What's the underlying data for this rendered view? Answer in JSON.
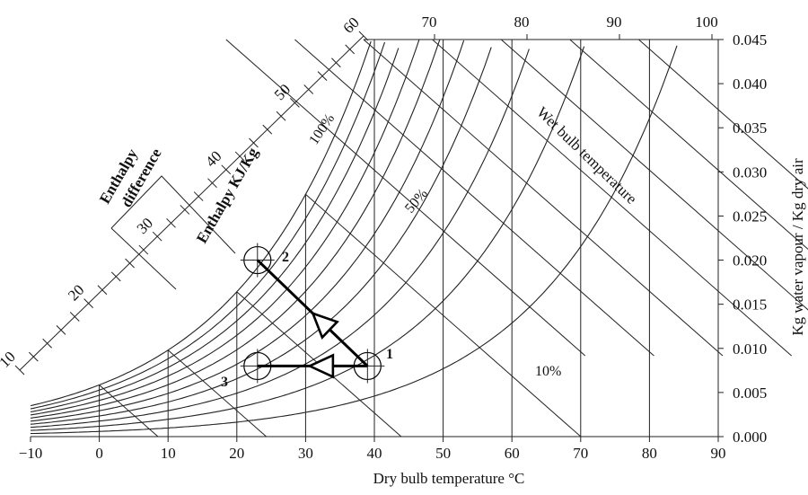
{
  "chart_data": {
    "type": "line",
    "x_axis": {
      "label": "Dry bulb temperature °C",
      "ticks_bottom": [
        "−10",
        "0",
        "10",
        "20",
        "30",
        "40",
        "50",
        "60",
        "70",
        "80",
        "90"
      ],
      "ticks_top": [
        "70",
        "80",
        "90",
        "100"
      ]
    },
    "y_axis": {
      "label": "Kg water vapour / Kg dry air",
      "side": "right",
      "ticks": [
        "0.000",
        "0.005",
        "0.010",
        "0.015",
        "0.020",
        "0.025",
        "0.030",
        "0.035",
        "0.040",
        "0.045"
      ],
      "range": [
        0,
        0.045
      ]
    },
    "enthalpy_scale": {
      "label": "Enthalpy KJ/Kg",
      "ticks": [
        "10",
        "20",
        "30",
        "40",
        "50",
        "60"
      ]
    },
    "enthalpy_difference_label": [
      "Enthalpy",
      "difference"
    ],
    "wet_bulb_label": "Wet bulb temperature",
    "rh_labels": [
      "100%",
      "50%",
      "10%"
    ],
    "relative_humidity_curves": [
      100,
      90,
      80,
      70,
      60,
      50,
      40,
      30,
      20,
      10
    ],
    "wet_bulb_lines": [
      0,
      10,
      20,
      30,
      40,
      50,
      60,
      70,
      80,
      90,
      100
    ],
    "process_points": [
      {
        "label": "1",
        "dry_bulb": 39,
        "humidity": 0.008
      },
      {
        "label": "2",
        "dry_bulb": 23,
        "humidity": 0.02
      },
      {
        "label": "3",
        "dry_bulb": 23,
        "humidity": 0.008
      }
    ],
    "process_path": [
      "1",
      "2",
      "1",
      "3"
    ]
  }
}
